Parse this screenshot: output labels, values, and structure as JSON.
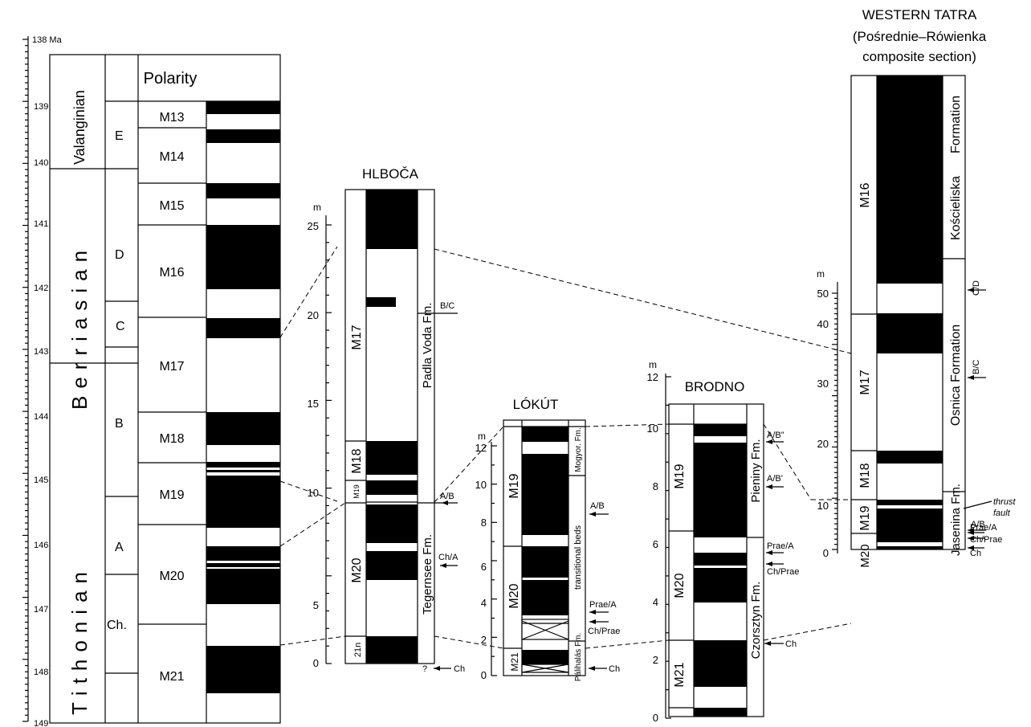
{
  "timescale": {
    "ticks": [
      "138 Ma",
      "139",
      "140",
      "141",
      "142",
      "143",
      "144",
      "145",
      "146",
      "147",
      "148",
      "149"
    ],
    "stages": [
      "Valanginian",
      "Berriasian",
      "Tithonian"
    ],
    "zones": [
      "E",
      "D",
      "C",
      "B",
      "A",
      "Ch."
    ],
    "polarity_header": "Polarity",
    "chrons": [
      "M13",
      "M14",
      "M15",
      "M16",
      "M17",
      "M18",
      "M19",
      "M20",
      "M21"
    ]
  },
  "hlboca": {
    "title": "HLBOČA",
    "unit": "m",
    "axis": [
      "0",
      "5",
      "10",
      "15",
      "20",
      "25"
    ],
    "chrons": [
      "21n",
      "M20",
      "M19",
      "M18",
      "M17"
    ],
    "formations": [
      "Tegernsee Fm.",
      "Padla Voda Fm."
    ],
    "markers": [
      "B/C",
      "A/B",
      "Ch/A",
      "?",
      "Ch"
    ]
  },
  "lokut": {
    "title": "LÓKÚT",
    "unit": "m",
    "axis": [
      "0",
      "2",
      "4",
      "6",
      "8",
      "10",
      "12"
    ],
    "chrons": [
      "M21",
      "M20",
      "M19"
    ],
    "formations": [
      "Pálihalás Fm.",
      "transitional beds",
      "Mogyor. Fm."
    ],
    "markers": [
      "A/B",
      "Prae/A",
      "Ch/Prae",
      "Ch"
    ]
  },
  "brodno": {
    "title": "BRODNO",
    "unit": "m",
    "axis": [
      "0",
      "2",
      "4",
      "6",
      "8",
      "10",
      "12"
    ],
    "chrons": [
      "M21",
      "M20",
      "M19"
    ],
    "formations": [
      "Czorsztyn Fm.",
      "Pieniny Fm."
    ],
    "markers": [
      "A/B\"",
      "A/B'",
      "Prae/A",
      "Ch/Prae",
      "Ch"
    ]
  },
  "western_tatra": {
    "title_lines": [
      "WESTERN TATRA",
      "(Pośrednie–Rówienka",
      "composite section)"
    ],
    "unit": "m",
    "axis": [
      "0",
      "10",
      "20",
      "30",
      "40",
      "50"
    ],
    "chrons": [
      "M20",
      "M19",
      "M18",
      "M17",
      "M16"
    ],
    "formations": [
      "Jasenina Fm.",
      "Osnica Formation",
      "Kościeliska",
      "Formation"
    ],
    "markers": [
      "C/D",
      "B/C",
      "A/B",
      "thrust",
      "fault",
      "Ch",
      "Prae/A",
      "Ch/Prae",
      "Ch"
    ]
  }
}
